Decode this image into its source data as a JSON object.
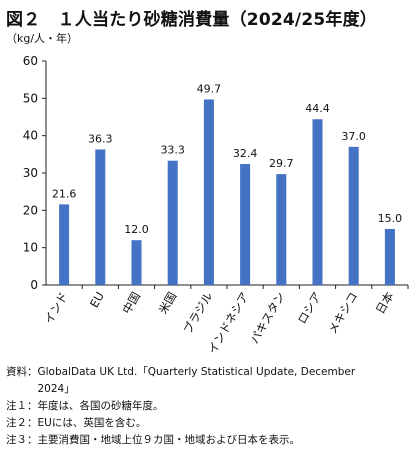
{
  "header": {
    "title": "図２　１人当たり砂糖消費量（2024/25年度）",
    "unit": "（kg/人・年）"
  },
  "chart_data": {
    "type": "bar",
    "categories": [
      "インド",
      "EU",
      "中国",
      "米国",
      "ブラジル",
      "インドネシア",
      "パキスタン",
      "ロシア",
      "メキシコ",
      "日本"
    ],
    "values": [
      21.6,
      36.3,
      12.0,
      33.3,
      49.7,
      32.4,
      29.7,
      44.4,
      37.0,
      15.0
    ],
    "value_labels": [
      "21.6",
      "36.3",
      "12.0",
      "33.3",
      "49.7",
      "32.4",
      "29.7",
      "44.4",
      "37.0",
      "15.0"
    ],
    "ylim": [
      0,
      60
    ],
    "yticks": [
      0,
      10,
      20,
      30,
      40,
      50,
      60
    ],
    "bar_color": "#4472c4",
    "grid": false
  },
  "notes": {
    "source_label": "資料：",
    "source_text": "GlobalData UK Ltd.「Quarterly Statistical Update, December",
    "source_text_2": "2024」",
    "note1_label": "注１：",
    "note1_text": "年度は、各国の砂糖年度。",
    "note2_label": "注２：",
    "note2_text": "EUには、英国を含む。",
    "note3_label": "注３：",
    "note3_text": "主要消費国・地域上位９カ国・地域および日本を表示。"
  }
}
